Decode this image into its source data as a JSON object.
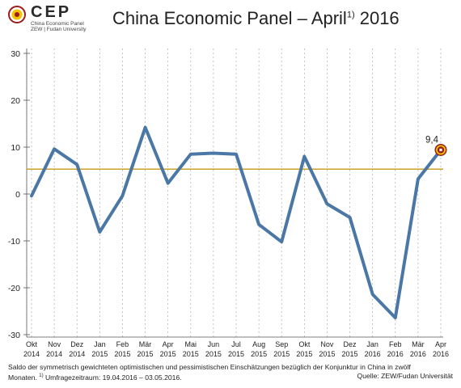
{
  "logo": {
    "name": "CEP",
    "line1": "China Economic Panel",
    "line2": "ZEW | Fudan University",
    "colors": {
      "ring": "#9b1c1c",
      "center": "#f2c400"
    }
  },
  "title": {
    "main": "China Economic Panel – April",
    "sup": "1)",
    "year": " 2016"
  },
  "chart_data": {
    "type": "line",
    "categories": [
      [
        "Okt",
        "2014"
      ],
      [
        "Nov",
        "2014"
      ],
      [
        "Dez",
        "2014"
      ],
      [
        "Jan",
        "2015"
      ],
      [
        "Feb",
        "2015"
      ],
      [
        "Mär",
        "2015"
      ],
      [
        "Apr",
        "2015"
      ],
      [
        "Mai",
        "2015"
      ],
      [
        "Jun",
        "2015"
      ],
      [
        "Jul",
        "2015"
      ],
      [
        "Aug",
        "2015"
      ],
      [
        "Sep",
        "2015"
      ],
      [
        "Okt",
        "2015"
      ],
      [
        "Nov",
        "2015"
      ],
      [
        "Dez",
        "2015"
      ],
      [
        "Jan",
        "2016"
      ],
      [
        "Feb",
        "2016"
      ],
      [
        "Mär",
        "2016"
      ],
      [
        "Apr",
        "2016"
      ]
    ],
    "values": [
      -0.4,
      9.6,
      6.3,
      -8.1,
      -0.4,
      14.2,
      2.3,
      8.5,
      8.7,
      8.5,
      -6.5,
      -10.2,
      8.0,
      -2.1,
      -5.0,
      -21.4,
      -26.4,
      3.2,
      9.4
    ],
    "reference_line": 5.3,
    "ylim": [
      -30,
      30
    ],
    "yticks": [
      -30,
      -20,
      -10,
      0,
      10,
      20,
      30
    ],
    "last_label": "9,4",
    "grid": "vertical dashed",
    "colors": {
      "line": "#4a77a5",
      "reference": "#c9a227",
      "marker_outer": "#f2c400",
      "marker_inner": "#9b1c1c"
    }
  },
  "footnote": {
    "line1": "Saldo der symmetrisch gewichteten optimistischen und pessimistischen Einschätzungen bezüglich der Konjunktur in China in zwölf",
    "line2_prefix": "Monaten.",
    "line2_sup": "1)",
    "line2_rest": " Umfragezeitraum: 19.04.2016 – 03.05.2016."
  },
  "source": "Quelle: ZEW/Fudan Universität"
}
